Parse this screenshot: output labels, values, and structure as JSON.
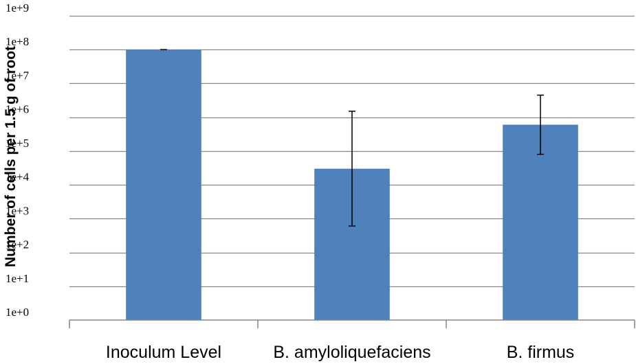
{
  "chart_data": {
    "type": "bar",
    "yscale": "log",
    "ylim": [
      1,
      1000000000
    ],
    "ylabel": "Number of cells per 1.5 g of root",
    "xlabel": "",
    "title": "",
    "grid": true,
    "categories": [
      "Inoculum Level",
      "B. amyloliquefaciens",
      "B. firmus"
    ],
    "values": [
      100000000,
      30000,
      600000
    ],
    "error_low": [
      100000000,
      600,
      80000
    ],
    "error_high": [
      100000000,
      1500000,
      4500000
    ],
    "yticks": [
      1,
      10,
      100,
      1000,
      10000,
      100000,
      1000000,
      10000000,
      100000000,
      1000000000
    ],
    "ytick_labels": [
      "1e+0",
      "1e+1",
      "1e+2",
      "1e+3",
      "1e+4",
      "1e+5",
      "1e+6",
      "1e+7",
      "1e+8",
      "1e+9"
    ],
    "colors": {
      "bar": "#4f81bd",
      "grid": "#868686",
      "axis": "#868686",
      "error": "#000000"
    }
  }
}
